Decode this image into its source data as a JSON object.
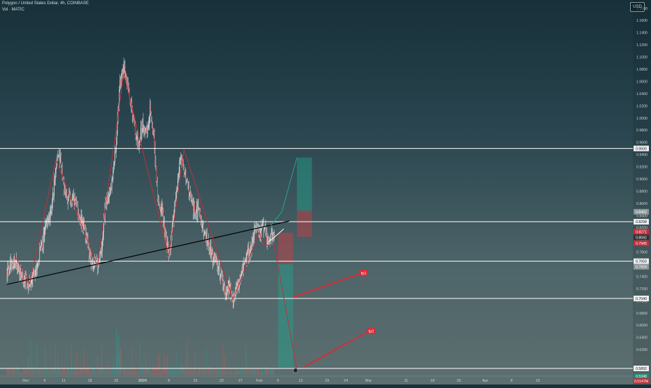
{
  "header": {
    "symbol_line": "Polygon / United States Dollar, 4h, COINBASE",
    "volume_line": "Vol · MATIC",
    "currency_button": "USD"
  },
  "colors": {
    "candle_up": "#26a69a",
    "candle_down": "#ef5350",
    "zigzag": "#c2303a",
    "horizontal_levels": "#ffffff",
    "trendline": "#000000",
    "target_zone": "#22a38f",
    "stop_zone": "#c43f45",
    "arrow_tp": "#d12f3a"
  },
  "chart_data": {
    "type": "candlestick",
    "symbol": "MATICUSD",
    "timeframe": "4h",
    "exchange": "COINBASE",
    "ylim": [
      0.58,
      1.2
    ],
    "y_ticks": [
      1.18,
      1.16,
      1.14,
      1.12,
      1.1,
      1.08,
      1.06,
      1.04,
      1.02,
      1.0,
      0.98,
      0.96,
      0.94,
      0.92,
      0.9,
      0.88,
      0.86,
      0.84,
      0.82,
      0.8,
      0.78,
      0.76,
      0.74,
      0.72,
      0.7,
      0.68,
      0.66,
      0.64,
      0.62
    ],
    "x_ticks": [
      {
        "label": "Dec",
        "day": 0
      },
      {
        "label": "6",
        "day": 5
      },
      {
        "label": "11",
        "day": 10
      },
      {
        "label": "18",
        "day": 17
      },
      {
        "label": "25",
        "day": 24
      },
      {
        "label": "2024",
        "day": 31
      },
      {
        "label": "8",
        "day": 38
      },
      {
        "label": "15",
        "day": 45
      },
      {
        "label": "22",
        "day": 52
      },
      {
        "label": "27",
        "day": 57
      },
      {
        "label": "Feb",
        "day": 62
      },
      {
        "label": "6",
        "day": 67
      },
      {
        "label": "12",
        "day": 73
      },
      {
        "label": "19",
        "day": 80
      },
      {
        "label": "24",
        "day": 85
      },
      {
        "label": "Mar",
        "day": 91
      },
      {
        "label": "11",
        "day": 101
      },
      {
        "label": "18",
        "day": 108
      },
      {
        "label": "25",
        "day": 115
      },
      {
        "label": "Apr",
        "day": 122
      },
      {
        "label": "8",
        "day": 129
      },
      {
        "label": "15",
        "day": 136
      }
    ],
    "price_path": [
      [
        -5,
        0.75
      ],
      [
        -3,
        0.765
      ],
      [
        -1,
        0.74
      ],
      [
        1,
        0.728
      ],
      [
        3,
        0.76
      ],
      [
        5,
        0.81
      ],
      [
        7,
        0.86
      ],
      [
        8,
        0.925
      ],
      [
        9,
        0.935
      ],
      [
        10,
        0.895
      ],
      [
        11,
        0.865
      ],
      [
        12,
        0.87
      ],
      [
        13,
        0.86
      ],
      [
        14,
        0.845
      ],
      [
        15,
        0.83
      ],
      [
        16,
        0.8
      ],
      [
        17,
        0.775
      ],
      [
        18,
        0.76
      ],
      [
        19,
        0.755
      ],
      [
        20,
        0.78
      ],
      [
        21,
        0.85
      ],
      [
        22,
        0.87
      ],
      [
        23,
        0.9
      ],
      [
        24,
        0.96
      ],
      [
        25,
        1.055
      ],
      [
        26,
        1.085
      ],
      [
        27,
        1.055
      ],
      [
        28,
        1.02
      ],
      [
        29,
        0.98
      ],
      [
        30,
        0.96
      ],
      [
        31,
        0.99
      ],
      [
        32,
        0.975
      ],
      [
        33,
        1.01
      ],
      [
        34,
        0.97
      ],
      [
        35,
        0.87
      ],
      [
        36,
        0.85
      ],
      [
        37,
        0.81
      ],
      [
        38,
        0.77
      ],
      [
        39,
        0.83
      ],
      [
        40,
        0.88
      ],
      [
        41,
        0.935
      ],
      [
        42,
        0.915
      ],
      [
        43,
        0.89
      ],
      [
        44,
        0.86
      ],
      [
        45,
        0.845
      ],
      [
        46,
        0.85
      ],
      [
        47,
        0.82
      ],
      [
        48,
        0.8
      ],
      [
        49,
        0.785
      ],
      [
        50,
        0.77
      ],
      [
        51,
        0.755
      ],
      [
        52,
        0.735
      ],
      [
        53,
        0.71
      ],
      [
        54,
        0.725
      ],
      [
        55,
        0.7
      ],
      [
        56,
        0.72
      ],
      [
        57,
        0.74
      ],
      [
        58,
        0.765
      ],
      [
        59,
        0.78
      ],
      [
        60,
        0.795
      ],
      [
        61,
        0.82
      ],
      [
        62,
        0.8
      ],
      [
        63,
        0.825
      ],
      [
        64,
        0.8
      ],
      [
        65,
        0.805
      ],
      [
        66,
        0.81
      ]
    ],
    "trendline": [
      [
        -5,
        0.727
      ],
      [
        70,
        0.831
      ]
    ],
    "zigzag": [
      [
        -3,
        0.775
      ],
      [
        1,
        0.728
      ],
      [
        8,
        0.931
      ],
      [
        19,
        0.757
      ],
      [
        26,
        1.073
      ],
      [
        38,
        0.772
      ],
      [
        42,
        0.948
      ],
      [
        55,
        0.702
      ],
      [
        62,
        0.813
      ],
      [
        63,
        0.792
      ],
      [
        66,
        0.791
      ],
      [
        72,
        0.587
      ]
    ],
    "arrow_up_path": [
      [
        65,
        0.823
      ],
      [
        68,
        0.846
      ],
      [
        72,
        0.935
      ]
    ],
    "small_arrow_path": [
      [
        64.5,
        0.797
      ],
      [
        66.5,
        0.807
      ],
      [
        68.5,
        0.818
      ]
    ],
    "horizontal_levels": [
      {
        "price": 0.95,
        "label": "0.9500"
      },
      {
        "price": 0.8298,
        "label": "0.8298"
      },
      {
        "price": 0.765,
        "label": "0.7650"
      },
      {
        "price": 0.704,
        "label": "0.7040"
      },
      {
        "price": 0.5892,
        "label": "0.5892"
      }
    ],
    "position_zones": [
      {
        "kind": "target",
        "day_from": 72,
        "day_to": 76,
        "price_top": 0.935,
        "price_bottom": 0.848
      },
      {
        "kind": "stop",
        "day_from": 72,
        "day_to": 76,
        "price_top": 0.848,
        "price_bottom": 0.805
      },
      {
        "kind": "target",
        "day_from": 67,
        "day_to": 71,
        "price_top": 0.76,
        "price_bottom": 0.591
      },
      {
        "kind": "stop",
        "day_from": 67,
        "day_to": 71,
        "price_top": 0.812,
        "price_bottom": 0.762
      }
    ],
    "tp_markers": [
      {
        "label": "tp1",
        "from": [
          71,
          0.706
        ],
        "to": [
          89,
          0.745
        ]
      },
      {
        "label": "tp2",
        "from": [
          74,
          0.592
        ],
        "to": [
          91,
          0.65
        ]
      }
    ],
    "price_badges": [
      {
        "label": "0.8462",
        "price": 0.8462,
        "style": "grey"
      },
      {
        "label": "0.8271",
        "price": 0.8135,
        "style": "red"
      },
      {
        "label": "0.8042",
        "price": 0.8042,
        "style": "dark"
      },
      {
        "label": "0.7945",
        "price": 0.7945,
        "style": "red"
      },
      {
        "label": "0.7559",
        "price": 0.7559,
        "style": "grey"
      },
      {
        "label": "0.5348",
        "price": 0.5348,
        "style": "green"
      },
      {
        "label": "0.5147M",
        "price": 0.5147,
        "style": "red"
      }
    ],
    "volume_series_label": "Vol · MATIC"
  }
}
